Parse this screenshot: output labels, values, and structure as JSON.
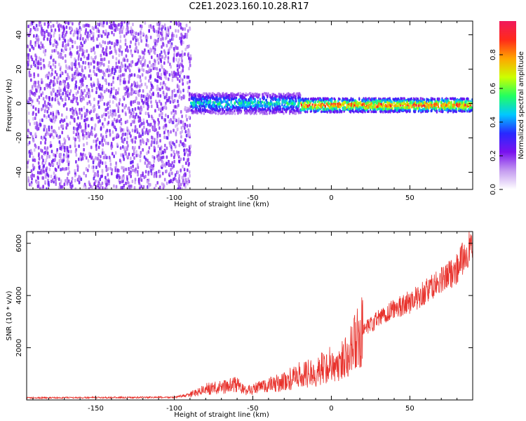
{
  "title": "C2E1.2023.160.10.28.R17",
  "colors": {
    "background": "#ffffff",
    "line": "#e8312b",
    "axis": "#000000"
  },
  "chart_data": [
    {
      "type": "heatmap",
      "title": "C2E1.2023.160.10.28.R17",
      "xlabel": "Height of straight line (km)",
      "ylabel": "Frequency (Hz)",
      "xlim": [
        -194,
        90
      ],
      "ylim": [
        -50,
        48
      ],
      "xticks": [
        -150,
        -100,
        -50,
        0,
        50
      ],
      "yticks": [
        -40,
        -20,
        0,
        20,
        40
      ],
      "colorbar": {
        "label": "Normalized spectral amplitude",
        "range": [
          0.0,
          1.0
        ],
        "ticks": [
          0.0,
          0.2,
          0.4,
          0.6,
          0.8
        ],
        "colormap": [
          "#ffffff",
          "#c59cf0",
          "#7a12ee",
          "#2828ff",
          "#00c8ff",
          "#22ff60",
          "#ccff00",
          "#ffa500",
          "#ff2a1a",
          "#f0195c"
        ]
      },
      "regions": [
        {
          "name": "noise",
          "x_range": [
            -194,
            -90
          ],
          "freq_range": [
            -50,
            48
          ],
          "amplitude": 0.3
        },
        {
          "name": "onset",
          "x_range": [
            -90,
            -20
          ],
          "freq_center": 0,
          "freq_spread": 6,
          "amplitude": 0.55
        },
        {
          "name": "signal",
          "x_range": [
            -20,
            90
          ],
          "freq_center": -1,
          "freq_spread": 4,
          "amplitude": 0.95
        }
      ],
      "grid": false
    },
    {
      "type": "line",
      "xlabel": "Height of straight line (km)",
      "ylabel": "SNR (10 * v/v)",
      "xlim": [
        -194,
        90
      ],
      "ylim": [
        0,
        6450
      ],
      "xticks": [
        -150,
        -100,
        -50,
        0,
        50
      ],
      "yticks": [
        2000,
        4000,
        6000
      ],
      "series": [
        {
          "x": [
            -194,
            -150,
            -100,
            -90,
            -80,
            -70,
            -60,
            -55,
            -50,
            -40,
            -30,
            -20,
            -10,
            0,
            5,
            10,
            15,
            20,
            30,
            40,
            50,
            60,
            70,
            80,
            85,
            90
          ],
          "y": [
            80,
            90,
            100,
            200,
            420,
            480,
            600,
            350,
            420,
            560,
            700,
            950,
            1050,
            1400,
            1250,
            1900,
            2150,
            2600,
            3100,
            3500,
            3750,
            4150,
            4550,
            5050,
            5550,
            6000
          ]
        }
      ],
      "grid": false
    }
  ]
}
